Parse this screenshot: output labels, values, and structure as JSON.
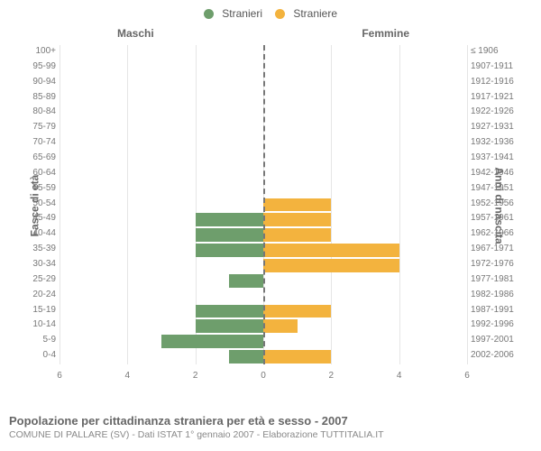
{
  "legend": {
    "male": {
      "label": "Stranieri",
      "color": "#6e9e6c"
    },
    "female": {
      "label": "Straniere",
      "color": "#f3b33e"
    }
  },
  "columns": {
    "male": "Maschi",
    "female": "Femmine"
  },
  "axes": {
    "left_label": "Fasce di età",
    "right_label": "Anni di nascita",
    "x_max": 6,
    "x_ticks": [
      6,
      4,
      2,
      0,
      2,
      4,
      6
    ]
  },
  "colors": {
    "male_bar": "#6e9e6c",
    "female_bar": "#f3b33e",
    "grid": "#e5e5e5",
    "center": "#777777",
    "bg": "#ffffff",
    "tick_text": "#777777"
  },
  "rows": [
    {
      "age": "100+",
      "birth": "≤ 1906",
      "m": 0,
      "f": 0
    },
    {
      "age": "95-99",
      "birth": "1907-1911",
      "m": 0,
      "f": 0
    },
    {
      "age": "90-94",
      "birth": "1912-1916",
      "m": 0,
      "f": 0
    },
    {
      "age": "85-89",
      "birth": "1917-1921",
      "m": 0,
      "f": 0
    },
    {
      "age": "80-84",
      "birth": "1922-1926",
      "m": 0,
      "f": 0
    },
    {
      "age": "75-79",
      "birth": "1927-1931",
      "m": 0,
      "f": 0
    },
    {
      "age": "70-74",
      "birth": "1932-1936",
      "m": 0,
      "f": 0
    },
    {
      "age": "65-69",
      "birth": "1937-1941",
      "m": 0,
      "f": 0
    },
    {
      "age": "60-64",
      "birth": "1942-1946",
      "m": 0,
      "f": 0
    },
    {
      "age": "55-59",
      "birth": "1947-1951",
      "m": 0,
      "f": 0
    },
    {
      "age": "50-54",
      "birth": "1952-1956",
      "m": 0,
      "f": 2
    },
    {
      "age": "45-49",
      "birth": "1957-1961",
      "m": 2,
      "f": 2
    },
    {
      "age": "40-44",
      "birth": "1962-1966",
      "m": 2,
      "f": 2
    },
    {
      "age": "35-39",
      "birth": "1967-1971",
      "m": 2,
      "f": 4
    },
    {
      "age": "30-34",
      "birth": "1972-1976",
      "m": 0,
      "f": 4
    },
    {
      "age": "25-29",
      "birth": "1977-1981",
      "m": 1,
      "f": 0
    },
    {
      "age": "20-24",
      "birth": "1982-1986",
      "m": 0,
      "f": 0
    },
    {
      "age": "15-19",
      "birth": "1987-1991",
      "m": 2,
      "f": 2
    },
    {
      "age": "10-14",
      "birth": "1992-1996",
      "m": 2,
      "f": 1
    },
    {
      "age": "5-9",
      "birth": "1997-2001",
      "m": 3,
      "f": 0
    },
    {
      "age": "0-4",
      "birth": "2002-2006",
      "m": 1,
      "f": 2
    }
  ],
  "footer": {
    "title": "Popolazione per cittadinanza straniera per età e sesso - 2007",
    "subtitle": "COMUNE DI PALLARE (SV) - Dati ISTAT 1° gennaio 2007 - Elaborazione TUTTITALIA.IT"
  },
  "chart_type": "population-pyramid"
}
